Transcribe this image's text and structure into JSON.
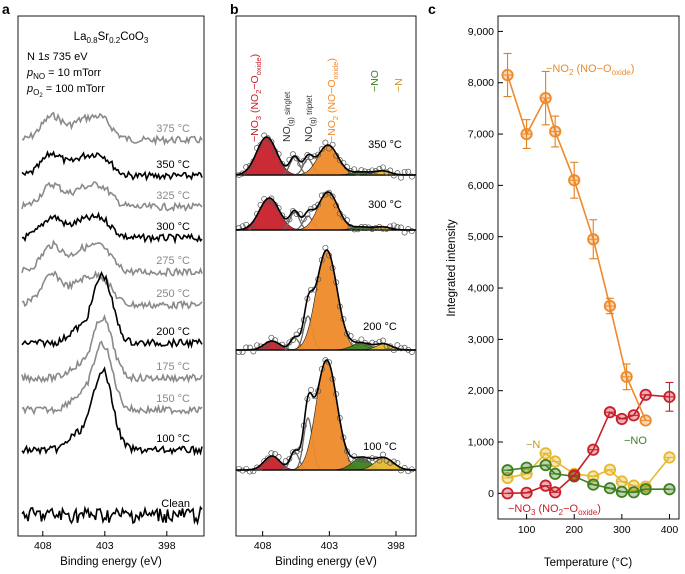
{
  "colors": {
    "no3": "#c8202a",
    "no2": "#ef8a2a",
    "no": "#3f7f1e",
    "n": "#e6b82f",
    "no_singlet": "#6a6a6a",
    "no_triplet": "#6a6a6a",
    "gray_trace": "#8a8a8a",
    "black_trace": "#000000",
    "error_bar": "#e08020",
    "error_bar_no3": "#c8202a"
  },
  "panel_a": {
    "letter": "a",
    "title": {
      "main": "La",
      "sub1": "0.8",
      "mid": "Sr",
      "sub2": "0.2",
      "tail": "CoO",
      "sub3": "3"
    },
    "info_line1": {
      "pre": "N 1",
      "italic": "s",
      "post": " 735 eV"
    },
    "info_line2": {
      "p": "p",
      "sub": "NO",
      "post": " = 10 mTorr"
    },
    "info_line3": {
      "p": "p",
      "sub": "O",
      "subsub": "2",
      "post": " = 100 mTorr"
    },
    "traces": [
      {
        "label": "375 °C",
        "style": "gray"
      },
      {
        "label": "350 °C",
        "style": "black"
      },
      {
        "label": "325 °C",
        "style": "gray"
      },
      {
        "label": "300 °C",
        "style": "black"
      },
      {
        "label": "275 °C",
        "style": "gray"
      },
      {
        "label": "250 °C",
        "style": "gray"
      },
      {
        "label": "200 °C",
        "style": "black"
      },
      {
        "label": "175 °C",
        "style": "gray"
      },
      {
        "label": "150 °C",
        "style": "gray"
      },
      {
        "label": "100 °C",
        "style": "black"
      },
      {
        "label": "Clean",
        "style": "black"
      }
    ],
    "xticks": [
      "408",
      "403",
      "398"
    ],
    "xlabel": "Binding energy (eV)"
  },
  "panel_b": {
    "letter": "b",
    "labels": {
      "no3": {
        "pre": "−NO",
        "sub": "3",
        "mid": " (NO",
        "sub2": "2",
        "post": "−O",
        "sub3": "oxide",
        "close": ")"
      },
      "singlet": {
        "pre": "NO",
        "sub": "(g)",
        "post": " singlet"
      },
      "triplet": {
        "pre": "NO",
        "sub": "(g)",
        "post": " triplet"
      },
      "no2": {
        "pre": "−NO",
        "sub": "2",
        "mid": " (NO−O",
        "sub2": "oxide",
        "close": ")"
      },
      "no": "−NO",
      "n": "−N"
    },
    "spectra": [
      {
        "label": "350 °C"
      },
      {
        "label": "300 °C"
      },
      {
        "label": "200 °C"
      },
      {
        "label": "100 °C"
      }
    ],
    "xticks": [
      "408",
      "403",
      "398"
    ],
    "xlabel": "Binding energy (eV)"
  },
  "chart_data": {
    "type": "line",
    "panel_letter": "c",
    "xlabel": "Temperature (°C)",
    "ylabel": "Integrated intensity",
    "xlim": [
      40,
      420
    ],
    "ylim": [
      -500,
      9300
    ],
    "xticks": [
      100,
      200,
      300,
      400
    ],
    "xtick_labels": [
      "100",
      "200",
      "300",
      "400"
    ],
    "yticks": [
      0,
      1000,
      2000,
      3000,
      4000,
      5000,
      6000,
      7000,
      8000,
      9000
    ],
    "ytick_labels": [
      "0",
      "1,000",
      "2,000",
      "3,000",
      "4,000",
      "5,000",
      "6,000",
      "7,000",
      "8,000",
      "9,000"
    ],
    "series": [
      {
        "name": "−NO2 (NO−Ooxide)",
        "key": "no2",
        "x": [
          60,
          100,
          140,
          160,
          200,
          240,
          275,
          310,
          350
        ],
        "y": [
          8150,
          7000,
          7700,
          7050,
          6100,
          4950,
          3650,
          2270,
          1420
        ],
        "err": [
          420,
          280,
          520,
          300,
          350,
          380,
          150,
          250,
          0
        ]
      },
      {
        "name": "−NO3 (NO2−Ooxide)",
        "key": "no3",
        "x": [
          60,
          100,
          140,
          160,
          200,
          240,
          275,
          300,
          325,
          350,
          400
        ],
        "y": [
          0,
          10,
          150,
          20,
          350,
          850,
          1580,
          1450,
          1520,
          1920,
          1880
        ],
        "err": [
          0,
          0,
          0,
          0,
          0,
          0,
          0,
          0,
          0,
          0,
          280
        ]
      },
      {
        "name": "−N",
        "key": "n",
        "x": [
          60,
          100,
          140,
          160,
          200,
          240,
          275,
          300,
          325,
          350,
          400
        ],
        "y": [
          300,
          380,
          780,
          620,
          380,
          330,
          460,
          230,
          150,
          130,
          700
        ],
        "err": [
          0,
          0,
          0,
          0,
          0,
          0,
          0,
          0,
          0,
          0,
          0
        ]
      },
      {
        "name": "−NO",
        "key": "no",
        "x": [
          60,
          100,
          140,
          160,
          200,
          240,
          275,
          300,
          325,
          350,
          400
        ],
        "y": [
          450,
          500,
          550,
          380,
          330,
          170,
          100,
          30,
          20,
          80,
          80
        ],
        "err": [
          0,
          0,
          0,
          0,
          0,
          0,
          0,
          0,
          0,
          0,
          0
        ]
      }
    ],
    "annotations": {
      "no2": {
        "pre": "−NO",
        "sub": "2",
        "mid": " (NO−O",
        "sub2": "oxide",
        "close": ")"
      },
      "no3": {
        "pre": "−NO",
        "sub": "3",
        "mid": " (NO",
        "sub2": "2",
        "post": "−O",
        "sub3": "oxide",
        "close": ")"
      },
      "n": "−N",
      "no": "−NO"
    }
  }
}
